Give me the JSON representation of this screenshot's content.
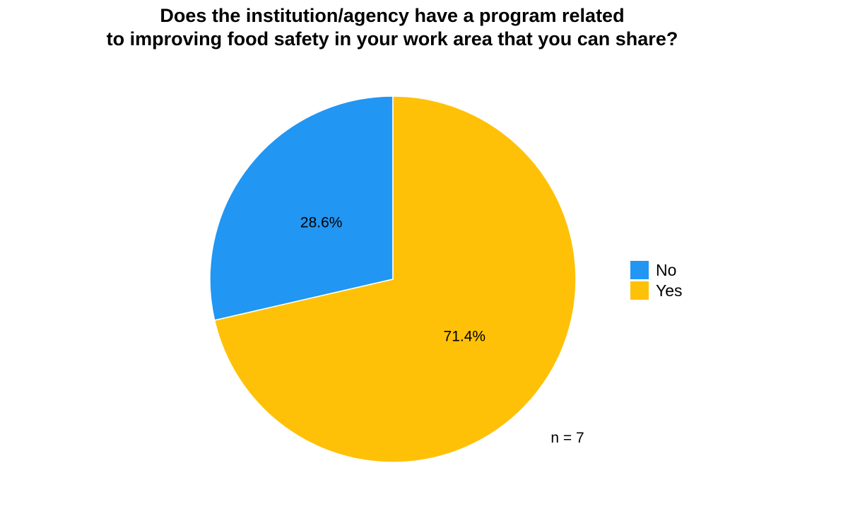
{
  "chart_data": {
    "type": "pie",
    "title_lines": [
      "Does the institution/agency have a program related",
      "to improving food safety in your work area that you can share?"
    ],
    "slices": [
      {
        "name": "No",
        "value": 28.6,
        "label": "28.6%",
        "color": "#2196F3"
      },
      {
        "name": "Yes",
        "value": 71.4,
        "label": "71.4%",
        "color": "#FFC107"
      }
    ],
    "legend": {
      "position": "right",
      "entries": [
        {
          "label": "No",
          "color": "#2196F3"
        },
        {
          "label": "Yes",
          "color": "#FFC107"
        }
      ]
    },
    "annotation": "n = 7",
    "start": "12 o'clock",
    "direction": "counterclockwise"
  }
}
